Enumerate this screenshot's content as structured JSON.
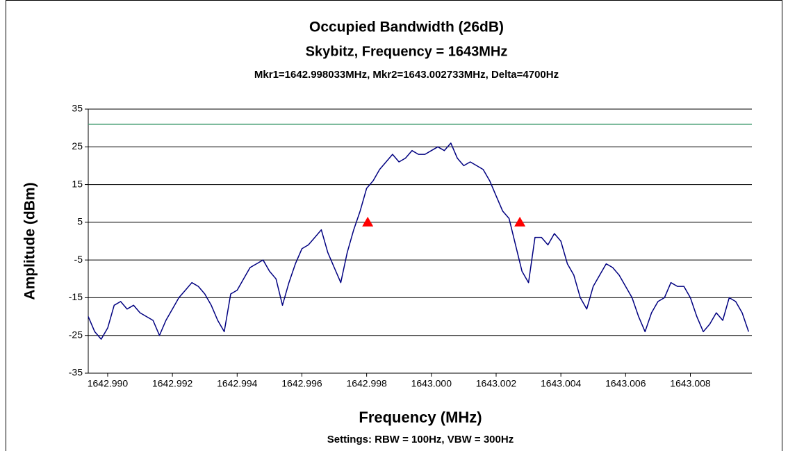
{
  "chart_data": {
    "type": "line",
    "title": "Occupied Bandwidth (26dB)",
    "subtitle": "Skybitz, Frequency = 1643MHz",
    "annotation": "Mkr1=1642.998033MHz, Mkr2=1643.002733MHz, Delta=4700Hz",
    "xlabel": "Frequency (MHz)",
    "ylabel": "Amplitude (dBm)",
    "footnote": "Settings: RBW = 100Hz, VBW = 300Hz",
    "xlim": [
      1642.9894,
      1643.0099
    ],
    "ylim": [
      -35,
      35
    ],
    "yticks": [
      -35,
      -25,
      -15,
      -5,
      5,
      15,
      25,
      35
    ],
    "xticks": [
      {
        "value": 1642.99,
        "label": "1642.990"
      },
      1642.992,
      1642.994,
      1642.996,
      1642.998,
      {
        "value": 1643,
        "label": "1643.000"
      },
      1643.002,
      1643.004,
      1643.006,
      1643.008
    ],
    "grid": true,
    "series": [
      {
        "color": "#000080",
        "x": [
          1642.9894,
          1642.9896,
          1642.9898,
          1642.99,
          1642.9902,
          1642.9904,
          1642.9906,
          1642.9908,
          1642.991,
          1642.9912,
          1642.9914,
          1642.9916,
          1642.9918,
          1642.992,
          1642.9922,
          1642.9924,
          1642.9926,
          1642.9928,
          1642.993,
          1642.9932,
          1642.9934,
          1642.9936,
          1642.9938,
          1642.994,
          1642.9942,
          1642.9944,
          1642.9946,
          1642.9948,
          1642.995,
          1642.9952,
          1642.9954,
          1642.9956,
          1642.9958,
          1642.996,
          1642.9962,
          1642.9964,
          1642.9966,
          1642.9968,
          1642.997,
          1642.9972,
          1642.9974,
          1642.9976,
          1642.9978,
          1642.998,
          1642.9982,
          1642.9984,
          1642.9986,
          1642.9988,
          1642.999,
          1642.9992,
          1642.9994,
          1642.9996,
          1642.9998,
          1643,
          1643.0002,
          1643.0004,
          1643.0006,
          1643.0008,
          1643.001,
          1643.0012,
          1643.0014,
          1643.0016,
          1643.0018,
          1643.002,
          1643.0022,
          1643.0024,
          1643.0026,
          1643.0028,
          1643.003,
          1643.0032,
          1643.0034,
          1643.0036,
          1643.0038,
          1643.004,
          1643.0042,
          1643.0044,
          1643.0046,
          1643.0048,
          1643.005,
          1643.0052,
          1643.0054,
          1643.0056,
          1643.0058,
          1643.006,
          1643.0062,
          1643.0064,
          1643.0066,
          1643.0068,
          1643.007,
          1643.0072,
          1643.0074,
          1643.0076,
          1643.0078,
          1643.008,
          1643.0082,
          1643.0084,
          1643.0086,
          1643.0088,
          1643.009,
          1643.0092,
          1643.0094,
          1643.0096,
          1643.0098
        ],
        "values": [
          -20,
          -24,
          -26,
          -23,
          -17,
          -16,
          -18,
          -17,
          -19,
          -20,
          -21,
          -25,
          -21,
          -18,
          -15,
          -13,
          -11,
          -12,
          -14,
          -17,
          -21,
          -24,
          -14,
          -13,
          -10,
          -7,
          -6,
          -5,
          -8,
          -10,
          -17,
          -11,
          -6,
          -2,
          -1,
          1,
          3,
          -3,
          -7,
          -11,
          -3,
          3,
          8,
          14,
          16,
          19,
          21,
          23,
          21,
          22,
          24,
          23,
          23,
          24,
          25,
          24,
          26,
          22,
          20,
          21,
          20,
          19,
          16,
          12,
          8,
          6,
          -1,
          -8,
          -11,
          1,
          1,
          -1,
          2,
          0,
          -6,
          -9,
          -15,
          -18,
          -12,
          -9,
          -6,
          -7,
          -9,
          -12,
          -15,
          -20,
          -24,
          -19,
          -16,
          -15,
          -11,
          -12,
          -12,
          -15,
          -20,
          -24,
          -22,
          -19,
          -21,
          -15,
          -16,
          -19,
          -24
        ]
      }
    ],
    "reference_lines": [
      {
        "value": 31,
        "color": "#3f9a6e"
      }
    ],
    "markers": {
      "color": "#ff0000",
      "x": [
        1642.998033,
        1643.002733
      ],
      "values": [
        5,
        5
      ]
    }
  }
}
